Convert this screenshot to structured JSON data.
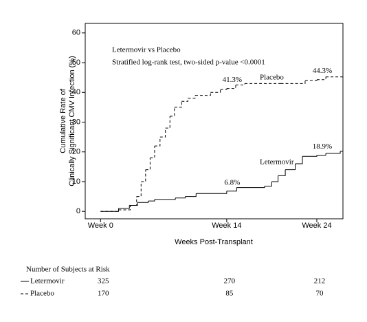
{
  "chart_data": {
    "type": "step",
    "notes": [
      "Letermovir vs Placebo",
      "Stratified log-rank test, two-sided p-value <0.0001"
    ],
    "y_label": [
      "Cumulative Rate of",
      "Clinically Significant CMV Infection (%)"
    ],
    "x_label": "Weeks Post-Transplant",
    "xlim": [
      -1.7,
      26.9
    ],
    "ylim": [
      -2.5,
      63.2
    ],
    "xticks": [
      {
        "value": 0,
        "label": "Week 0"
      },
      {
        "value": 14,
        "label": "Week 14"
      },
      {
        "value": 24,
        "label": "Week 24"
      }
    ],
    "yticks": [
      0,
      10,
      20,
      30,
      40,
      50,
      60
    ],
    "series": [
      {
        "name": "Letermovir",
        "color": "#000000",
        "dashed": false,
        "x": [
          0,
          2,
          3.2,
          4.1,
          5.3,
          6,
          8.3,
          9.4,
          10.6,
          14,
          15.1,
          18.2,
          19,
          19.7,
          20.5,
          21.6,
          22.4,
          24,
          25,
          26.6
        ],
        "values": [
          0,
          1,
          2,
          3,
          3.5,
          4,
          4.5,
          5,
          6,
          6.8,
          8,
          8.5,
          10,
          12,
          14,
          16,
          18.5,
          18.9,
          19.5,
          20.2
        ]
      },
      {
        "name": "Placebo",
        "color": "#000000",
        "dashed": true,
        "x": [
          0,
          2,
          3.3,
          4,
          4.5,
          5,
          5.5,
          6,
          6.6,
          7.2,
          7.7,
          8.2,
          9,
          9.7,
          10.5,
          12.2,
          13.3,
          14,
          15,
          16,
          20,
          22.7,
          24,
          25,
          26.8
        ],
        "values": [
          0,
          0.5,
          2,
          5,
          10,
          14,
          18,
          22,
          25,
          28,
          32,
          35,
          37,
          38,
          39,
          40,
          41,
          41.3,
          42.5,
          43,
          43,
          44,
          44.3,
          45.2,
          45.2
        ]
      }
    ],
    "annotations": [
      {
        "text": "41.3%",
        "x": 14,
        "y": 41.3
      },
      {
        "text": "44.3%",
        "x": 24,
        "y": 44.3
      },
      {
        "text": "6.8%",
        "x": 14,
        "y": 6.8
      },
      {
        "text": "18.9%",
        "x": 24,
        "y": 18.9
      }
    ],
    "risk_table": {
      "title": "Number of Subjects at Risk",
      "rows": [
        {
          "name": "Letermovir",
          "values": [
            "325",
            "270",
            "212"
          ]
        },
        {
          "name": "Placebo",
          "values": [
            "170",
            "85",
            "70"
          ]
        }
      ]
    }
  }
}
